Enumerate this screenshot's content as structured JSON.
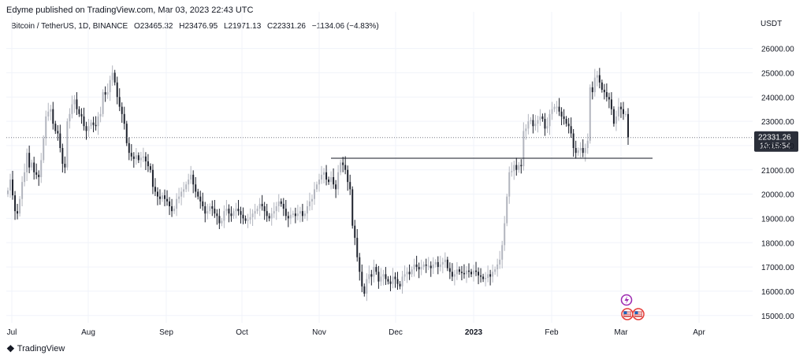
{
  "header": {
    "published": "Edyme published on TradingView.com, Mar 03, 2023 22:43 UTC"
  },
  "legend": {
    "symbol": "Bitcoin / TetherUS, 1D, BINANCE",
    "open": "O23465.32",
    "high": "H23476.95",
    "low": "L21971.13",
    "close": "C22331.26",
    "change": "−1134.06 (−4.83%)"
  },
  "axis": {
    "currency": "USDT",
    "price_ticks": [
      "26000.00",
      "25000.00",
      "24000.00",
      "23000.00",
      "22000.00",
      "21000.00",
      "20000.00",
      "19000.00",
      "18000.00",
      "17000.00",
      "16000.00",
      "15000.00"
    ],
    "month_ticks": [
      "Jul",
      "Aug",
      "Sep",
      "Oct",
      "Nov",
      "Dec",
      "2023",
      "Feb",
      "Mar",
      "Apr"
    ]
  },
  "price_tag": {
    "price": "22331.26",
    "countdown": "10:15:54"
  },
  "footer": {
    "brand": "TradingView"
  },
  "colors": {
    "up": "#b2b5be",
    "down": "#1e222d",
    "line": "#131722",
    "dotted": "#787b86",
    "event_purple": "#9c27b0",
    "event_red": "#e53935"
  },
  "chart_data": {
    "type": "candlestick",
    "symbol": "Bitcoin / TetherUS",
    "interval": "1D",
    "ylim": [
      14700,
      26700
    ],
    "horizontal_line": 21480,
    "close_line": 22331.26,
    "series": [
      {
        "name": "Bitcoin / TetherUS",
        "values": [
          20150,
          20600,
          19950,
          19300,
          19200,
          19800,
          20500,
          20900,
          21700,
          21100,
          21300,
          20900,
          20800,
          20700,
          21400,
          22300,
          23200,
          23400,
          23500,
          22900,
          22600,
          22500,
          21900,
          21250,
          21100,
          23000,
          23300,
          23700,
          23900,
          23500,
          23300,
          23200,
          22800,
          22600,
          22800,
          22950,
          22850,
          22800,
          23200,
          23300,
          24200,
          24100,
          24200,
          24700,
          25000,
          24600,
          24000,
          23600,
          23300,
          22900,
          22100,
          21700,
          21550,
          21450,
          21600,
          21400,
          21500,
          21550,
          21350,
          21150,
          21000,
          20300,
          20100,
          19900,
          19800,
          19950,
          19800,
          19700,
          19500,
          19300,
          19400,
          19800,
          19900,
          20100,
          20200,
          20400,
          20600,
          20800,
          20400,
          20100,
          19900,
          19700,
          19500,
          19200,
          19300,
          19500,
          19400,
          19200,
          19100,
          18800,
          18900,
          19300,
          19400,
          19200,
          19100,
          19300,
          19400,
          19300,
          19150,
          19000,
          18900,
          18950,
          19050,
          19200,
          19300,
          19400,
          19600,
          19500,
          19300,
          19100,
          19000,
          19200,
          19300,
          19500,
          19700,
          19600,
          19400,
          19100,
          19000,
          19150,
          19200,
          19100,
          19200,
          19300,
          19100,
          19200,
          19500,
          19700,
          19800,
          20200,
          20400,
          20600,
          20800,
          20900,
          20600,
          20500,
          20700,
          20400,
          20200,
          20900,
          21300,
          21200,
          21000,
          20500,
          20200,
          18700,
          18200,
          17400,
          16800,
          16200,
          15900,
          16500,
          16700,
          16600,
          17000,
          16800,
          16400,
          16600,
          16700,
          16500,
          16400,
          16300,
          16600,
          16500,
          16300,
          16200,
          16600,
          16700,
          16800,
          16700,
          16900,
          17100,
          17000,
          16900,
          17000,
          17100,
          17050,
          17050,
          16950,
          17100,
          17200,
          17000,
          17100,
          17200,
          17300,
          16950,
          16800,
          16600,
          16700,
          16900,
          16800,
          16750,
          16700,
          16850,
          16800,
          16700,
          16850,
          16800,
          16650,
          16600,
          16500,
          16550,
          16700,
          16600,
          16800,
          16900,
          17100,
          17300,
          17900,
          18800,
          19900,
          20900,
          20950,
          21200,
          21000,
          21200,
          21150,
          22600,
          22700,
          23000,
          23050,
          22800,
          22900,
          23050,
          23200,
          23100,
          22700,
          22800,
          23300,
          23500,
          23600,
          23600,
          23400,
          23200,
          23100,
          22900,
          22800,
          22500,
          21900,
          21700,
          21800,
          21900,
          21700,
          21900,
          22200,
          24400,
          24200,
          24800,
          24900,
          24600,
          24300,
          24200,
          24000,
          23900,
          23500,
          22900,
          23200,
          23600,
          23500,
          23300,
          23300,
          22331
        ]
      }
    ]
  },
  "events": [
    {
      "icon": "lightning-icon"
    },
    {
      "icon": "us-flag-icon"
    },
    {
      "icon": "us-flag-icon"
    }
  ]
}
